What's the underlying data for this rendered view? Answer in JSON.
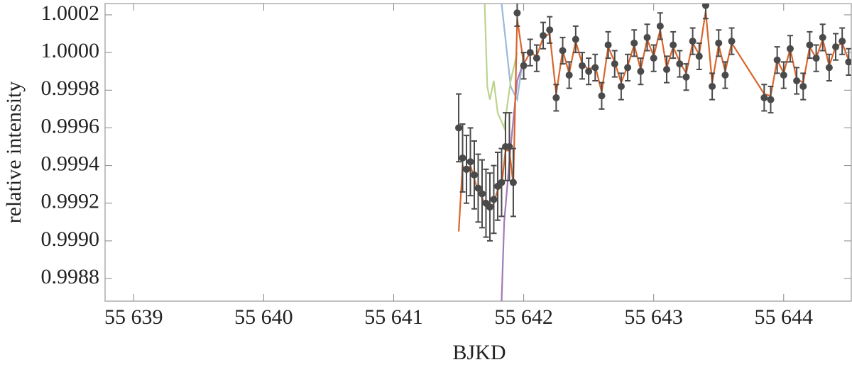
{
  "chart_data": {
    "type": "scatter",
    "xlabel": "BJKD",
    "ylabel": "relative intensity",
    "xlim": [
      55638.78,
      55644.52
    ],
    "ylim": [
      0.99868,
      1.00026
    ],
    "xticks": [
      {
        "value": 55639,
        "label": "55 639"
      },
      {
        "value": 55640,
        "label": "55 640"
      },
      {
        "value": 55641,
        "label": "55 641"
      },
      {
        "value": 55642,
        "label": "55 642"
      },
      {
        "value": 55643,
        "label": "55 643"
      },
      {
        "value": 55644,
        "label": "55 644"
      }
    ],
    "yticks": [
      0.9988,
      {
        "value": 0.999,
        "label": "0.9990"
      },
      0.9992,
      0.9994,
      0.9996,
      0.9998,
      {
        "value": 1.0,
        "label": "1.0000"
      },
      1.0002
    ],
    "series": [
      {
        "kind": "points",
        "color": "#4a4a4a",
        "x": [
          55641.5,
          55641.53,
          55641.56,
          55641.59,
          55641.62,
          55641.65,
          55641.68,
          55641.71,
          55641.74,
          55641.77,
          55641.8,
          55641.83,
          55641.86,
          55641.89,
          55641.92,
          55641.95,
          55642.0,
          55642.05,
          55642.1,
          55642.15,
          55642.2,
          55642.25,
          55642.3,
          55642.35,
          55642.4,
          55642.45,
          55642.5,
          55642.55,
          55642.6,
          55642.65,
          55642.7,
          55642.75,
          55642.8,
          55642.85,
          55642.9,
          55642.95,
          55643.0,
          55643.05,
          55643.1,
          55643.15,
          55643.2,
          55643.25,
          55643.3,
          55643.35,
          55643.4,
          55643.45,
          55643.5,
          55643.55,
          55643.6,
          55643.85,
          55643.9,
          55643.95,
          55644.0,
          55644.05,
          55644.1,
          55644.15,
          55644.2,
          55644.25,
          55644.3,
          55644.35,
          55644.4,
          55644.45,
          55644.5
        ],
        "values": [
          0.9996,
          0.99944,
          0.99938,
          0.99942,
          0.99935,
          0.99928,
          0.99925,
          0.9992,
          0.99918,
          0.99922,
          0.99929,
          0.99931,
          0.9995,
          0.9995,
          0.99931,
          1.00021,
          0.99993,
          1.0,
          0.99997,
          1.00009,
          1.00012,
          0.99976,
          1.00001,
          0.99988,
          1.00007,
          0.99993,
          0.9999,
          0.99992,
          0.99977,
          1.00004,
          0.99994,
          0.99982,
          0.99992,
          1.00005,
          0.9999,
          1.00008,
          0.99997,
          1.00014,
          0.99991,
          1.00004,
          0.99994,
          0.99987,
          1.00006,
          0.99998,
          1.00025,
          0.99982,
          1.00005,
          0.99988,
          1.00006,
          0.99976,
          0.99975,
          0.99996,
          0.99988,
          1.00002,
          0.99985,
          0.99982,
          1.00004,
          0.99997,
          1.00008,
          0.99992,
          1.00003,
          1.00006,
          0.99995
        ],
        "errors": [
          0.00018,
          0.00018,
          0.00018,
          0.00018,
          0.00018,
          0.00018,
          0.00018,
          0.00018,
          0.00018,
          0.00018,
          0.00018,
          0.00018,
          0.00018,
          0.00018,
          0.00018,
          7e-05,
          7e-05,
          7e-05,
          7e-05,
          7e-05,
          7e-05,
          7e-05,
          7e-05,
          7e-05,
          7e-05,
          7e-05,
          7e-05,
          7e-05,
          7e-05,
          7e-05,
          7e-05,
          7e-05,
          7e-05,
          7e-05,
          7e-05,
          7e-05,
          7e-05,
          7e-05,
          7e-05,
          7e-05,
          7e-05,
          7e-05,
          7e-05,
          7e-05,
          7e-05,
          7e-05,
          7e-05,
          7e-05,
          7e-05,
          7e-05,
          7e-05,
          7e-05,
          7e-05,
          7e-05,
          7e-05,
          7e-05,
          7e-05,
          7e-05,
          7e-05,
          7e-05,
          7e-05,
          7e-05,
          7e-05
        ]
      },
      {
        "kind": "line",
        "color": "#9ab8dc",
        "x": [
          55641.83,
          55641.9,
          55641.95,
          55642.0
        ],
        "values": [
          1.00026,
          0.99982,
          0.99975,
          1.0
        ]
      },
      {
        "kind": "line",
        "color": "#bcd38f",
        "x": [
          55641.7,
          55641.72,
          55641.74,
          55641.77,
          55641.8,
          55641.85,
          55641.9,
          55641.95
        ],
        "values": [
          1.00026,
          0.99982,
          0.99975,
          0.99985,
          0.99968,
          0.9996,
          0.99985,
          1.0
        ]
      },
      {
        "kind": "line",
        "color": "#a27ab8",
        "x": [
          55641.83,
          55641.85,
          55641.9,
          55641.95,
          55642.0
        ],
        "values": [
          0.99868,
          0.9991,
          0.9995,
          0.99985,
          0.99995
        ]
      },
      {
        "kind": "line",
        "color": "#d9652b",
        "x": [
          55641.5,
          55641.53,
          55641.56,
          55641.59,
          55641.62,
          55641.65,
          55641.68,
          55641.71,
          55641.74,
          55641.77,
          55641.8,
          55641.83,
          55641.86,
          55641.89,
          55641.92,
          55641.95,
          55642.0,
          55642.05,
          55642.1,
          55642.15,
          55642.2,
          55642.25,
          55642.3,
          55642.35,
          55642.4,
          55642.45,
          55642.5,
          55642.55,
          55642.6,
          55642.65,
          55642.7,
          55642.75,
          55642.8,
          55642.85,
          55642.9,
          55642.95,
          55643.0,
          55643.05,
          55643.1,
          55643.15,
          55643.2,
          55643.25,
          55643.3,
          55643.35,
          55643.4,
          55643.45,
          55643.5,
          55643.55,
          55643.6,
          55643.85,
          55643.9,
          55643.95,
          55644.0,
          55644.05,
          55644.1,
          55644.15,
          55644.2,
          55644.25,
          55644.3,
          55644.35,
          55644.4,
          55644.45,
          55644.5
        ],
        "values": [
          0.99905,
          0.9994,
          0.99936,
          0.9994,
          0.99933,
          0.99926,
          0.99923,
          0.99918,
          0.99916,
          0.9992,
          0.99927,
          0.99929,
          0.99948,
          0.99948,
          0.9993,
          1.00018,
          0.99994,
          1.0,
          0.99998,
          1.00008,
          1.0001,
          0.99978,
          1.00001,
          0.99989,
          1.00006,
          0.99994,
          0.99991,
          0.99993,
          0.99979,
          1.00003,
          0.99995,
          0.99984,
          0.99993,
          1.00004,
          0.99991,
          1.00007,
          0.99998,
          1.00012,
          0.99992,
          1.00003,
          0.99995,
          0.99989,
          1.00005,
          0.99999,
          1.00022,
          0.99984,
          1.00004,
          0.9999,
          1.00005,
          0.99978,
          0.99977,
          0.99996,
          0.99989,
          1.00002,
          0.99986,
          0.99984,
          1.00003,
          0.99997,
          1.00007,
          0.99993,
          1.00003,
          1.00005,
          0.99996
        ]
      }
    ]
  }
}
